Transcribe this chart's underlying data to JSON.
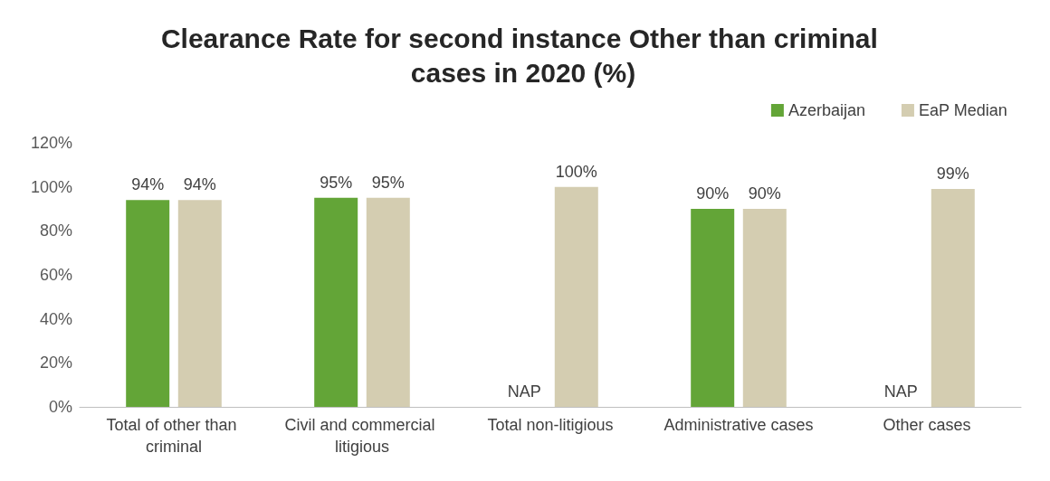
{
  "chart_data": {
    "type": "bar",
    "title": "Clearance Rate for second instance Other than criminal cases in 2020 (%)",
    "categories": [
      "Total of other than criminal",
      "Civil and commercial litigious",
      "Total non-litigious",
      "Administrative cases",
      "Other cases"
    ],
    "series": [
      {
        "name": "Azerbaijan",
        "color": "#63a537",
        "values": [
          94,
          95,
          null,
          90,
          null
        ],
        "value_labels": [
          "94%",
          "95%",
          "NAP",
          "90%",
          "NAP"
        ]
      },
      {
        "name": "EaP Median",
        "color": "#d4cdb1",
        "values": [
          94,
          95,
          100,
          90,
          99
        ],
        "value_labels": [
          "94%",
          "95%",
          "100%",
          "90%",
          "99%"
        ]
      }
    ],
    "ylim": [
      0,
      120
    ],
    "yticks": [
      {
        "value": 0,
        "label": "0%"
      },
      {
        "value": 20,
        "label": "20%"
      },
      {
        "value": 40,
        "label": "40%"
      },
      {
        "value": 60,
        "label": "60%"
      },
      {
        "value": 80,
        "label": "80%"
      },
      {
        "value": 100,
        "label": "100%"
      },
      {
        "value": 120,
        "label": "120%"
      }
    ],
    "grid": false,
    "legend": "top right"
  }
}
